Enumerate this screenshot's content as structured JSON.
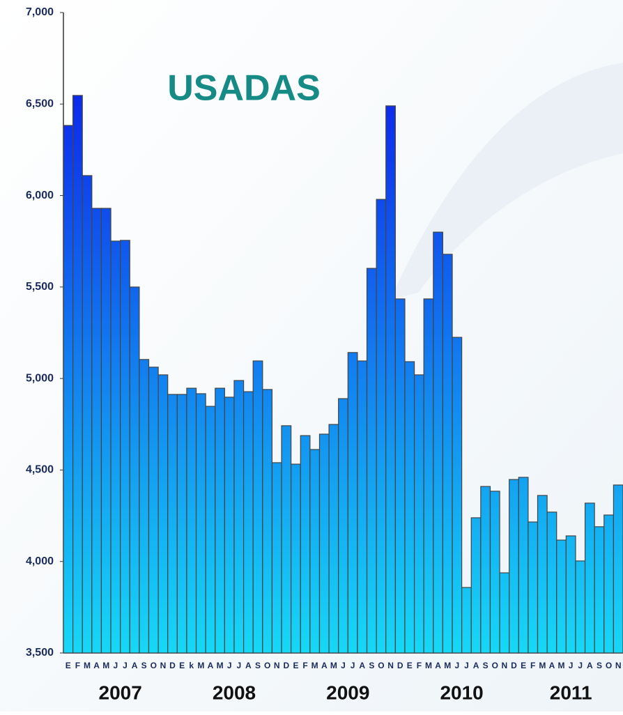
{
  "chart_data": {
    "type": "bar",
    "title": "USADAS",
    "categories": [
      "E",
      "F",
      "M",
      "A",
      "M",
      "J",
      "J",
      "A",
      "S",
      "O",
      "N",
      "D",
      "E",
      "k",
      "M",
      "A",
      "M",
      "J",
      "J",
      "A",
      "S",
      "O",
      "N",
      "D",
      "E",
      "F",
      "M",
      "A",
      "M",
      "J",
      "J",
      "A",
      "S",
      "O",
      "N",
      "D",
      "E",
      "F",
      "M",
      "A",
      "M",
      "J",
      "J",
      "A",
      "S",
      "O",
      "N",
      "D",
      "E",
      "F",
      "M",
      "A",
      "M",
      "J",
      "J",
      "A",
      "S",
      "O",
      "N"
    ],
    "values": [
      6383,
      6547,
      6109,
      5930,
      5930,
      5751,
      5755,
      5500,
      5104,
      5062,
      5020,
      4913,
      4913,
      4947,
      4917,
      4848,
      4947,
      4898,
      4989,
      4928,
      5096,
      4940,
      4540,
      4742,
      4532,
      4688,
      4612,
      4696,
      4749,
      4890,
      5142,
      5096,
      5602,
      5979,
      6490,
      5435,
      5092,
      5020,
      5435,
      5800,
      5679,
      5225,
      3858,
      4239,
      4410,
      4384,
      3938,
      4448,
      4460,
      4216,
      4361,
      4270,
      4117,
      4140,
      4003,
      4319,
      4190,
      4254,
      4418
    ],
    "year_labels": [
      "2007",
      "2008",
      "2009",
      "2010",
      "2011"
    ],
    "ylim": [
      3500,
      7000
    ],
    "yticks": [
      {
        "value": 3500,
        "label": "3,500"
      },
      {
        "value": 4000,
        "label": "4,000"
      },
      {
        "value": 4500,
        "label": "4,500"
      },
      {
        "value": 5000,
        "label": "5,000"
      },
      {
        "value": 5500,
        "label": "5,500"
      },
      {
        "value": 6000,
        "label": "6,000"
      },
      {
        "value": 6500,
        "label": "6,500"
      },
      {
        "value": 7000,
        "label": "7,000"
      }
    ],
    "gradient": [
      "#0c10e8",
      "#16d8f6"
    ],
    "title_color": "#168a84",
    "grid": false
  }
}
